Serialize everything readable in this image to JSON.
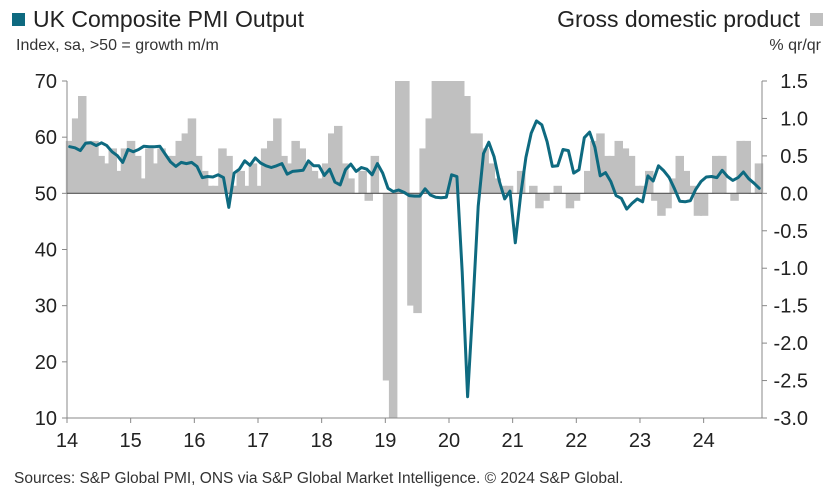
{
  "chart_data": {
    "type": "bar+line",
    "title_left": "UK Composite PMI Output",
    "subtitle_left": "Index, sa, >50 = growth m/m",
    "title_right": "Gross domestic product",
    "subtitle_right": "% qr/qr",
    "colors": {
      "pmi": "#0e6a80",
      "gdp": "#c0c0c0",
      "axis": "#888888",
      "baseline": "#555555"
    },
    "left_axis": {
      "min": 10,
      "max": 70,
      "ticks": [
        70,
        60,
        50,
        40,
        30,
        20,
        10
      ]
    },
    "right_axis": {
      "min": -3.0,
      "max": 1.5,
      "ticks": [
        "1.5",
        "1.0",
        "0.5",
        "0.0",
        "-0.5",
        "-1.0",
        "-1.5",
        "-2.0",
        "-2.5",
        "-3.0"
      ]
    },
    "x_ticks": [
      "14",
      "15",
      "16",
      "17",
      "18",
      "19",
      "20",
      "21",
      "22",
      "23",
      "24"
    ],
    "series": [
      {
        "name": "UK Composite PMI Output",
        "axis": "left",
        "start": "2014-01",
        "values": [
          58.3,
          58.1,
          57.6,
          58.9,
          59.0,
          58.5,
          59.0,
          58.5,
          57.4,
          56.7,
          55.5,
          57.8,
          57.4,
          57.8,
          58.4,
          58.3,
          58.3,
          58.4,
          57.0,
          55.6,
          54.8,
          55.5,
          55.3,
          55.5,
          54.8,
          52.8,
          53.0,
          52.9,
          53.3,
          52.8,
          47.5,
          53.6,
          54.3,
          55.8,
          55.0,
          56.3,
          55.4,
          54.9,
          54.6,
          54.9,
          55.3,
          53.4,
          53.9,
          54.0,
          54.1,
          55.8,
          54.9,
          54.9,
          53.2,
          54.3,
          52.0,
          51.5,
          54.2,
          55.2,
          53.9,
          54.6,
          54.3,
          53.3,
          55.3,
          53.6,
          50.9,
          50.3,
          50.6,
          50.2,
          49.6,
          49.5,
          49.5,
          50.8,
          49.7,
          49.3,
          49.2,
          49.3,
          53.3,
          53.0,
          36.0,
          13.8,
          30.0,
          47.7,
          57.1,
          59.1,
          56.5,
          52.1,
          49.0,
          50.4,
          41.2,
          49.6,
          56.4,
          60.7,
          62.9,
          62.2,
          59.2,
          54.8,
          54.9,
          57.8,
          57.6,
          53.6,
          54.2,
          59.9,
          60.9,
          58.2,
          53.1,
          53.7,
          52.1,
          49.6,
          49.1,
          47.2,
          48.2,
          49.0,
          48.5,
          53.1,
          52.2,
          54.9,
          54.0,
          52.8,
          50.8,
          48.6,
          48.5,
          48.7,
          50.7,
          52.1,
          52.9,
          53.0,
          52.8,
          54.1,
          53.0,
          52.3,
          52.8,
          53.8,
          52.6,
          51.8,
          50.9
        ]
      },
      {
        "name": "Gross domestic product",
        "axis": "right",
        "start": "2014-Q1",
        "values": [
          0.7,
          1.0,
          1.3,
          0.7,
          0.7,
          0.5,
          0.4,
          0.6,
          0.3,
          0.6,
          0.7,
          0.5,
          0.2,
          0.6,
          0.4,
          0.6,
          0.5,
          0.5,
          0.7,
          0.8,
          1.0,
          0.5,
          0.3,
          0.1,
          0.1,
          0.6,
          0.5,
          0.1,
          0.3,
          0.1,
          0.4,
          0.1,
          0.6,
          0.7,
          1.0,
          0.5,
          0.4,
          0.7,
          0.6,
          0.4,
          0.3,
          0.2,
          0.4,
          0.8,
          0.9,
          0.4,
          0.2,
          0.0,
          0.3,
          -0.1,
          0.5,
          0.0,
          -2.5,
          -3.0,
          1.5,
          1.5,
          -1.5,
          -1.6,
          0.6,
          1.0,
          1.5,
          1.5,
          1.5,
          1.5,
          1.5,
          1.3,
          0.8,
          0.8,
          0.6,
          0.4,
          0.2,
          0.1,
          0.1,
          0.0,
          0.3,
          0.0,
          0.1,
          -0.2,
          -0.1,
          0.0,
          0.1,
          0.0,
          -0.2,
          -0.1,
          0.0,
          0.3,
          0.7,
          0.8,
          0.5,
          0.5,
          0.7,
          0.6,
          0.5,
          0.1,
          0.1,
          0.3,
          -0.1,
          -0.3,
          -0.2,
          0.2,
          0.5,
          0.3,
          0.1,
          -0.3,
          -0.3,
          0.0,
          0.5,
          0.5,
          0.0,
          -0.1,
          0.7,
          0.7,
          0.0,
          0.4
        ]
      }
    ],
    "source": "Sources: S&P Global PMI, ONS via S&P Global Market Intelligence. © 2024 S&P Global."
  }
}
